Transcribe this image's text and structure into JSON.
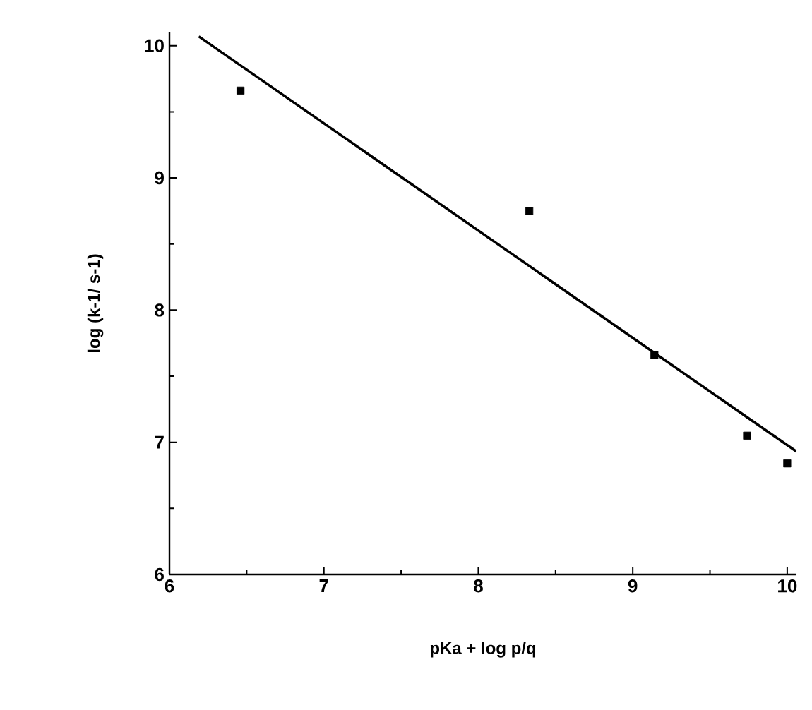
{
  "chart_data": {
    "type": "scatter",
    "xlabel": "pKa + log p/q",
    "ylabel": "log (k-1/ s-1)",
    "xlim": [
      6,
      10.06
    ],
    "ylim": [
      6,
      10.1
    ],
    "xticks": [
      6,
      7,
      8,
      9,
      10
    ],
    "yticks": [
      6,
      7,
      8,
      9,
      10
    ],
    "grid": false,
    "series": [
      {
        "marker": "square",
        "color": "#000000",
        "x": [
          6.46,
          8.33,
          9.14,
          9.74,
          10.0
        ],
        "values": [
          9.66,
          8.75,
          7.66,
          7.05,
          6.84
        ]
      },
      {
        "type": "line",
        "marker": "none",
        "line_style": "solid",
        "color": "#000000",
        "x": [
          6.19,
          10.06
        ],
        "values": [
          10.07,
          6.93
        ]
      }
    ]
  }
}
